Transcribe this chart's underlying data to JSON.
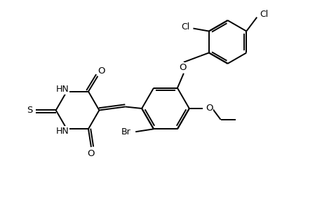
{
  "background_color": "#ffffff",
  "line_color": "#000000",
  "line_width": 1.4,
  "font_size": 9,
  "figsize": [
    4.6,
    3.0
  ],
  "dpi": 100,
  "xlim": [
    0,
    9.2
  ],
  "ylim": [
    0,
    6.0
  ]
}
